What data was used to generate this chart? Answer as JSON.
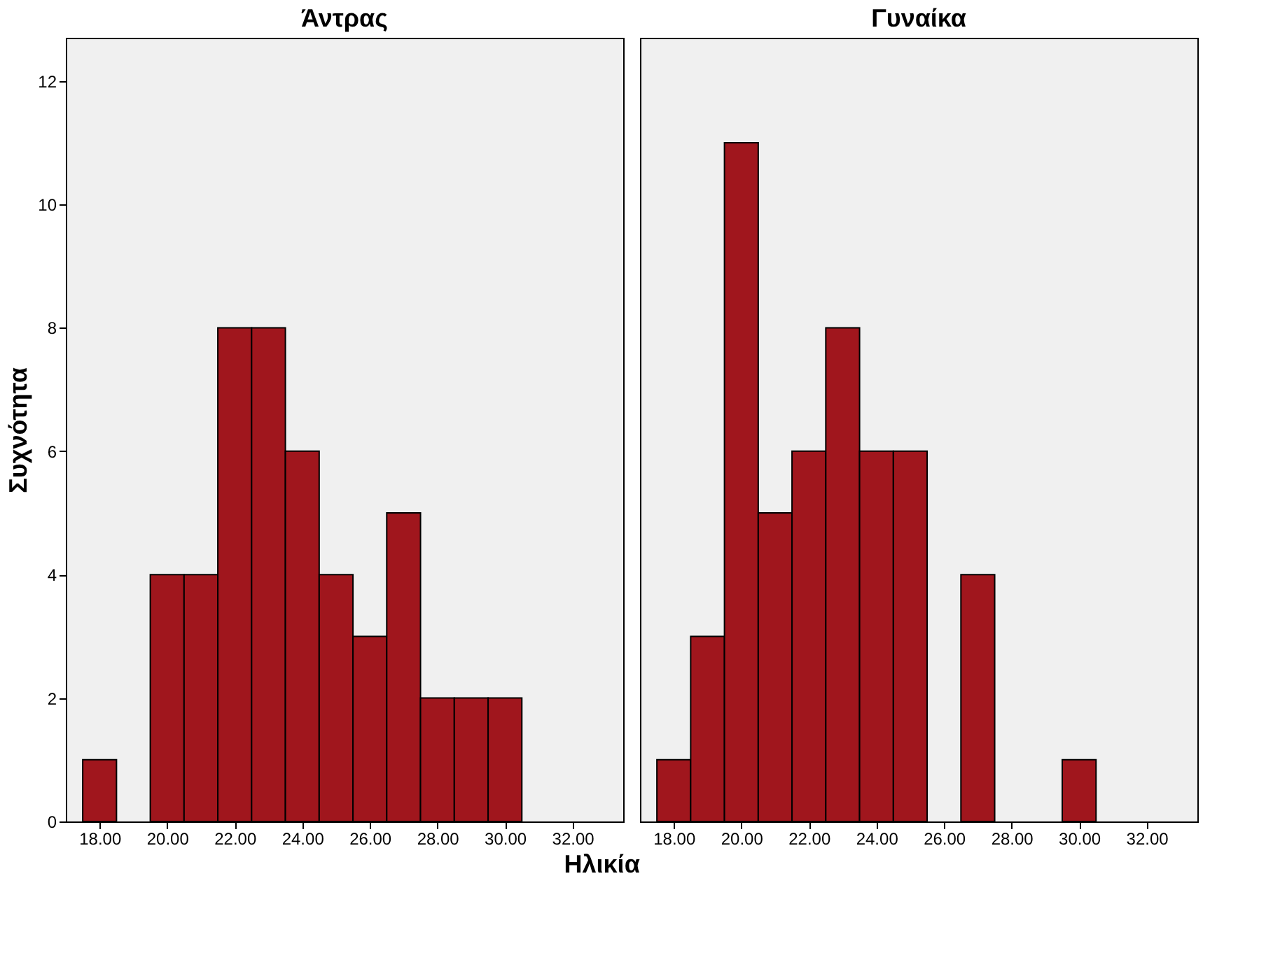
{
  "chart_data": [
    {
      "type": "histogram",
      "title": "Άντρας",
      "xlabel": "Ηλικία",
      "ylabel": "Συχνότητα",
      "bins": [
        17.5,
        18.5,
        19.5,
        20.5,
        21.5,
        22.5,
        23.5,
        24.5,
        25.5,
        26.5,
        27.5,
        28.5,
        29.5,
        30.5
      ],
      "values": [
        1,
        0,
        4,
        4,
        8,
        8,
        6,
        4,
        3,
        5,
        2,
        2,
        2
      ],
      "color": "#a0161d",
      "xlim": [
        17.0,
        33.5
      ],
      "xticks": [
        {
          "value": 18,
          "label": "18.00"
        },
        {
          "value": 20,
          "label": "20.00"
        },
        {
          "value": 22,
          "label": "22.00"
        },
        {
          "value": 24,
          "label": "24.00"
        },
        {
          "value": 26,
          "label": "26.00"
        },
        {
          "value": 28,
          "label": "28.00"
        },
        {
          "value": 30,
          "label": "30.00"
        },
        {
          "value": 32,
          "label": "32.00"
        }
      ],
      "ylim": [
        0,
        12.7
      ],
      "yticks": [
        0,
        2,
        4,
        6,
        8,
        10,
        12
      ],
      "grid": false
    },
    {
      "type": "histogram",
      "title": "Γυναίκα",
      "bins": [
        17.5,
        18.5,
        19.5,
        20.5,
        21.5,
        22.5,
        23.5,
        24.5,
        25.5,
        26.5,
        27.5,
        28.5,
        29.5,
        30.5
      ],
      "values": [
        1,
        3,
        11,
        5,
        6,
        8,
        6,
        6,
        0,
        4,
        0,
        0,
        1
      ],
      "color": "#a0161d",
      "xlim": [
        17.0,
        33.5
      ],
      "xticks": [
        {
          "value": 18,
          "label": "18.00"
        },
        {
          "value": 20,
          "label": "20.00"
        },
        {
          "value": 22,
          "label": "22.00"
        },
        {
          "value": 24,
          "label": "24.00"
        },
        {
          "value": 26,
          "label": "26.00"
        },
        {
          "value": 28,
          "label": "28.00"
        },
        {
          "value": 30,
          "label": "30.00"
        },
        {
          "value": 32,
          "label": "32.00"
        }
      ],
      "ylim": [
        0,
        12.7
      ],
      "yticks": [
        0,
        2,
        4,
        6,
        8,
        10,
        12
      ],
      "grid": false,
      "tick_labels": "x"
    }
  ]
}
